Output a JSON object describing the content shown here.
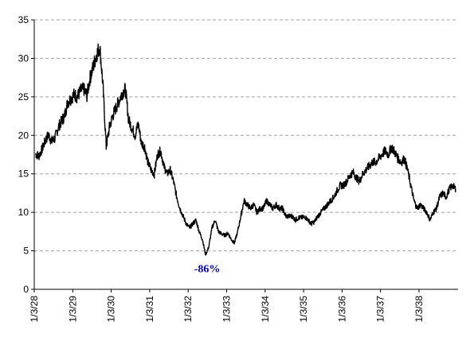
{
  "chart_data": {
    "type": "line",
    "title": "",
    "xlabel": "",
    "ylabel": "",
    "ylim": [
      0,
      35
    ],
    "grid": "horizontal dashed",
    "line_color": "#000000",
    "annotation_color": "#0000CC",
    "y_ticks": [
      "0",
      "5",
      "10",
      "15",
      "20",
      "25",
      "30",
      "35"
    ],
    "x_ticks": [
      "1/3/28",
      "1/3/29",
      "1/3/30",
      "1/3/31",
      "1/3/32",
      "1/3/33",
      "1/3/34",
      "1/3/35",
      "1/3/36",
      "1/3/37",
      "1/3/38"
    ],
    "annotations": [
      {
        "text": "-86%",
        "x": "1932-06",
        "y": 4.5
      }
    ],
    "series": [
      {
        "x": [
          "1928-01",
          "1928-02",
          "1928-03",
          "1928-04",
          "1928-05",
          "1928-06",
          "1928-07",
          "1928-08",
          "1928-09",
          "1928-10",
          "1928-11",
          "1928-12",
          "1929-01",
          "1929-02",
          "1929-03",
          "1929-04",
          "1929-05",
          "1929-06",
          "1929-07",
          "1929-08",
          "1929-09",
          "1929-10",
          "1929-11",
          "1929-12",
          "1930-01",
          "1930-02",
          "1930-03",
          "1930-04",
          "1930-05",
          "1930-06",
          "1930-07",
          "1930-08",
          "1930-09",
          "1930-10",
          "1930-11",
          "1930-12",
          "1931-01",
          "1931-02",
          "1931-03",
          "1931-04",
          "1931-05",
          "1931-06",
          "1931-07",
          "1931-08",
          "1931-09",
          "1931-10",
          "1931-11",
          "1931-12",
          "1932-01",
          "1932-02",
          "1932-03",
          "1932-04",
          "1932-05",
          "1932-06",
          "1932-07",
          "1932-08",
          "1932-09",
          "1932-10",
          "1932-11",
          "1932-12",
          "1933-01",
          "1933-02",
          "1933-03",
          "1933-04",
          "1933-05",
          "1933-06",
          "1933-07",
          "1933-08",
          "1933-09",
          "1933-10",
          "1933-11",
          "1933-12",
          "1934-01",
          "1934-02",
          "1934-03",
          "1934-04",
          "1934-05",
          "1934-06",
          "1934-07",
          "1934-08",
          "1934-09",
          "1934-10",
          "1934-11",
          "1934-12",
          "1935-01",
          "1935-02",
          "1935-03",
          "1935-04",
          "1935-05",
          "1935-06",
          "1935-07",
          "1935-08",
          "1935-09",
          "1935-10",
          "1935-11",
          "1935-12",
          "1936-01",
          "1936-02",
          "1936-03",
          "1936-04",
          "1936-05",
          "1936-06",
          "1936-07",
          "1936-08",
          "1936-09",
          "1936-10",
          "1936-11",
          "1936-12",
          "1937-01",
          "1937-02",
          "1937-03",
          "1937-04",
          "1937-05",
          "1937-06",
          "1937-07",
          "1937-08",
          "1937-09",
          "1937-10",
          "1937-11",
          "1937-12",
          "1938-01",
          "1938-02",
          "1938-03",
          "1938-04",
          "1938-05",
          "1938-06",
          "1938-07",
          "1938-08",
          "1938-09",
          "1938-10",
          "1938-11",
          "1938-12"
        ],
        "values": [
          17.6,
          17.3,
          18.2,
          19.3,
          20.1,
          19.2,
          19.6,
          21.0,
          21.8,
          22.5,
          24.3,
          24.8,
          25.3,
          25.0,
          25.8,
          26.0,
          25.2,
          27.5,
          29.0,
          30.5,
          31.5,
          26.5,
          18.5,
          21.0,
          22.5,
          23.5,
          24.5,
          25.5,
          26.0,
          22.0,
          21.0,
          20.0,
          21.5,
          19.0,
          18.5,
          16.5,
          15.5,
          15.0,
          17.5,
          18.0,
          16.0,
          15.0,
          15.5,
          14.0,
          12.0,
          10.5,
          9.5,
          8.5,
          8.0,
          8.5,
          9.0,
          7.5,
          6.5,
          4.5,
          5.5,
          8.0,
          9.0,
          7.5,
          7.2,
          7.0,
          7.3,
          6.5,
          6.0,
          7.5,
          9.5,
          11.5,
          11.0,
          10.5,
          11.0,
          10.0,
          10.5,
          10.5,
          11.5,
          11.0,
          10.5,
          11.0,
          10.5,
          10.5,
          9.5,
          9.5,
          9.5,
          9.0,
          9.3,
          9.3,
          9.4,
          9.0,
          8.5,
          8.8,
          9.5,
          10.0,
          10.5,
          11.0,
          11.5,
          12.0,
          12.8,
          13.5,
          13.5,
          14.0,
          14.8,
          15.2,
          14.5,
          14.0,
          15.0,
          15.5,
          16.0,
          16.5,
          16.5,
          17.0,
          17.5,
          18.0,
          17.5,
          18.5,
          17.8,
          17.0,
          16.5,
          17.0,
          15.5,
          13.5,
          11.5,
          10.5,
          11.0,
          10.5,
          10.0,
          9.0,
          10.0,
          10.5,
          12.0,
          12.5,
          12.0,
          13.0,
          13.5,
          13.0
        ]
      }
    ]
  }
}
